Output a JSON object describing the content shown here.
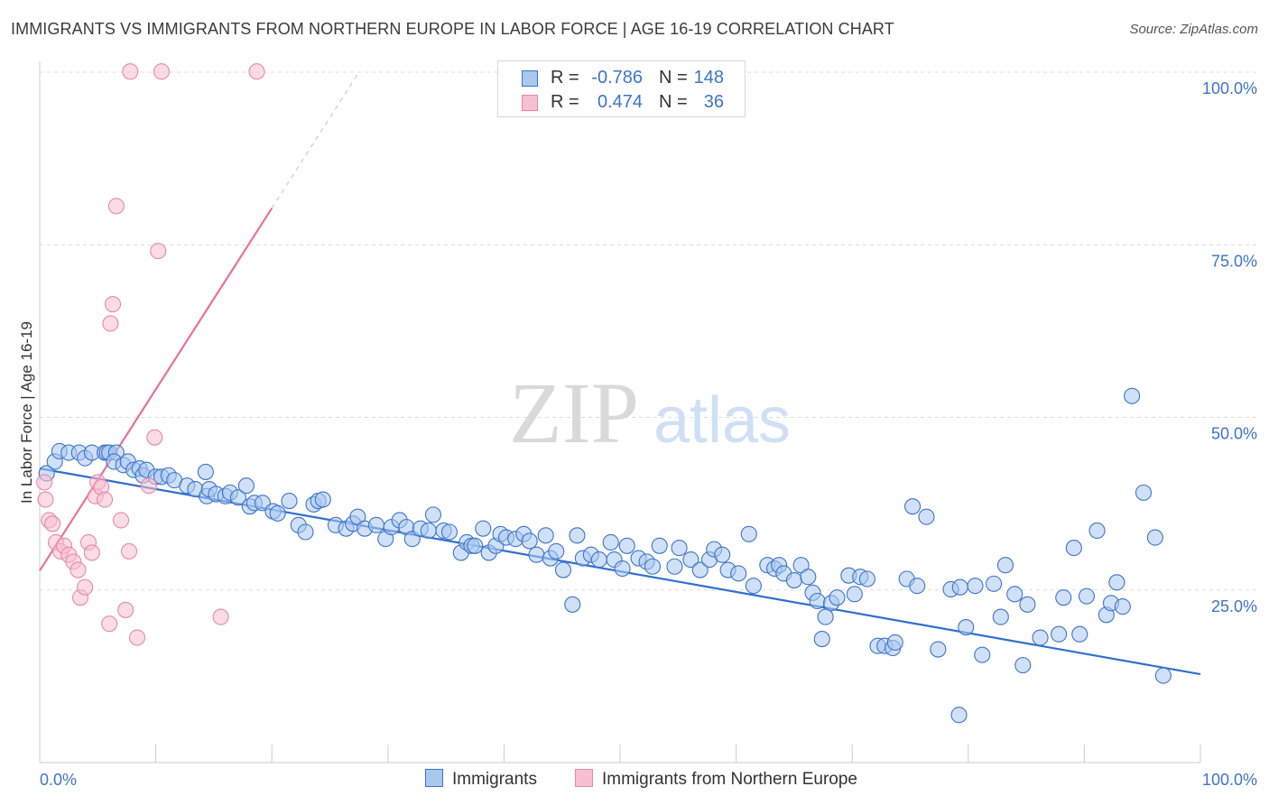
{
  "title": "IMMIGRANTS VS IMMIGRANTS FROM NORTHERN EUROPE IN LABOR FORCE | AGE 16-19 CORRELATION CHART",
  "source": "Source: ZipAtlas.com",
  "watermark": {
    "zip": "ZIP",
    "atlas": "atlas"
  },
  "legend": {
    "rows": [
      {
        "r_label": "R =",
        "r_value": "-0.786",
        "n_label": "N =",
        "n_value": "148"
      },
      {
        "r_label": "R =",
        "r_value": "0.474",
        "n_label": "N =",
        "n_value": "36"
      }
    ]
  },
  "bottom_legend": {
    "blue": "Immigrants",
    "pink": "Immigrants from Northern Europe"
  },
  "colors": {
    "blue_fill": "#a9c8f0",
    "blue_stroke": "#3d74c9",
    "blue_line": "#2f6fd1",
    "pink_fill": "#f7c0d0",
    "pink_stroke": "#e888a8",
    "pink_line": "#e8709a",
    "axis_text": "#3d74c9",
    "grid": "#dcdcdc"
  },
  "chart_data": {
    "type": "scatter",
    "xlabel": "",
    "ylabel": "In Labor Force | Age 16-19",
    "x_range": [
      0,
      100
    ],
    "y_range": [
      0,
      100
    ],
    "x_tick_labels": [
      "0.0%",
      "100.0%"
    ],
    "y_tick_labels": [
      {
        "value": 100,
        "label": "100.0%"
      },
      {
        "value": 75,
        "label": "75.0%"
      },
      {
        "value": 50,
        "label": "50.0%"
      },
      {
        "value": 25,
        "label": "25.0%"
      }
    ],
    "grid": "horizontal dashed",
    "legend_position": "top-center",
    "series": [
      {
        "name": "Immigrants",
        "trend": {
          "x": [
            0,
            100
          ],
          "y": [
            42.6,
            12.8
          ],
          "dashed_ext": null
        },
        "points": [
          [
            0.6,
            41.9
          ],
          [
            1.3,
            43.6
          ],
          [
            1.7,
            45.1
          ],
          [
            2.5,
            44.9
          ],
          [
            3.4,
            44.9
          ],
          [
            3.9,
            44.1
          ],
          [
            4.5,
            44.9
          ],
          [
            5.6,
            44.9
          ],
          [
            5.8,
            44.9
          ],
          [
            6,
            44.9
          ],
          [
            6.6,
            44.9
          ],
          [
            6.4,
            43.6
          ],
          [
            7.2,
            43.1
          ],
          [
            7.6,
            43.6
          ],
          [
            8.1,
            42.4
          ],
          [
            8.6,
            42.6
          ],
          [
            8.9,
            41.6
          ],
          [
            9.2,
            42.4
          ],
          [
            10,
            41.4
          ],
          [
            10.5,
            41.4
          ],
          [
            11.1,
            41.6
          ],
          [
            11.6,
            40.9
          ],
          [
            12.7,
            40.1
          ],
          [
            13.4,
            39.6
          ],
          [
            14.4,
            38.6
          ],
          [
            14.3,
            42.1
          ],
          [
            14.6,
            39.6
          ],
          [
            15.2,
            38.9
          ],
          [
            16,
            38.6
          ],
          [
            16.4,
            39.1
          ],
          [
            17.1,
            38.4
          ],
          [
            17.8,
            40.1
          ],
          [
            18.1,
            37.1
          ],
          [
            18.5,
            37.6
          ],
          [
            19.2,
            37.6
          ],
          [
            20.1,
            36.4
          ],
          [
            20.5,
            36.1
          ],
          [
            21.5,
            37.9
          ],
          [
            22.3,
            34.4
          ],
          [
            22.9,
            33.4
          ],
          [
            23.6,
            37.4
          ],
          [
            24,
            37.9
          ],
          [
            24.4,
            38.1
          ],
          [
            25.5,
            34.4
          ],
          [
            26.4,
            33.9
          ],
          [
            27,
            34.6
          ],
          [
            27.4,
            35.6
          ],
          [
            28,
            33.9
          ],
          [
            29,
            34.4
          ],
          [
            29.8,
            32.4
          ],
          [
            30.3,
            34.1
          ],
          [
            31,
            35.1
          ],
          [
            31.6,
            34.1
          ],
          [
            32.1,
            32.4
          ],
          [
            32.8,
            33.9
          ],
          [
            33.9,
            35.9
          ],
          [
            33.5,
            33.6
          ],
          [
            34.8,
            33.6
          ],
          [
            35.3,
            33.4
          ],
          [
            36.3,
            30.4
          ],
          [
            36.8,
            31.9
          ],
          [
            37.2,
            31.4
          ],
          [
            37.5,
            31.4
          ],
          [
            38.2,
            33.9
          ],
          [
            38.7,
            30.4
          ],
          [
            39.3,
            31.4
          ],
          [
            39.7,
            33.1
          ],
          [
            40.2,
            32.6
          ],
          [
            41,
            32.4
          ],
          [
            41.7,
            33.1
          ],
          [
            42.2,
            32.1
          ],
          [
            42.8,
            30.1
          ],
          [
            43.6,
            32.9
          ],
          [
            44,
            29.6
          ],
          [
            44.5,
            30.6
          ],
          [
            45.1,
            27.9
          ],
          [
            45.9,
            22.9
          ],
          [
            46.3,
            32.9
          ],
          [
            46.8,
            29.6
          ],
          [
            47.5,
            30.1
          ],
          [
            48.2,
            29.4
          ],
          [
            49.2,
            31.9
          ],
          [
            49.5,
            29.4
          ],
          [
            50.2,
            28.1
          ],
          [
            50.6,
            31.4
          ],
          [
            51.6,
            29.6
          ],
          [
            52.3,
            29.1
          ],
          [
            52.8,
            28.4
          ],
          [
            53.4,
            31.4
          ],
          [
            54.7,
            28.4
          ],
          [
            55.1,
            31.1
          ],
          [
            56.1,
            29.4
          ],
          [
            56.9,
            27.9
          ],
          [
            57.7,
            29.4
          ],
          [
            58.1,
            30.9
          ],
          [
            58.8,
            30.1
          ],
          [
            59.3,
            27.9
          ],
          [
            60.2,
            27.4
          ],
          [
            61.1,
            33.1
          ],
          [
            61.5,
            25.6
          ],
          [
            62.7,
            28.6
          ],
          [
            63.3,
            28.1
          ],
          [
            63.7,
            28.6
          ],
          [
            64.1,
            27.4
          ],
          [
            65,
            26.4
          ],
          [
            65.6,
            28.6
          ],
          [
            66.2,
            26.9
          ],
          [
            66.6,
            24.6
          ],
          [
            67,
            23.4
          ],
          [
            67.4,
            17.9
          ],
          [
            67.7,
            21.1
          ],
          [
            68.2,
            23.1
          ],
          [
            68.7,
            23.9
          ],
          [
            69.7,
            27.1
          ],
          [
            70.2,
            24.4
          ],
          [
            70.7,
            26.9
          ],
          [
            71.3,
            26.6
          ],
          [
            72.2,
            16.9
          ],
          [
            72.8,
            16.9
          ],
          [
            73.5,
            16.6
          ],
          [
            73.7,
            17.4
          ],
          [
            74.7,
            26.6
          ],
          [
            75.2,
            37.1
          ],
          [
            75.6,
            25.6
          ],
          [
            76.4,
            35.6
          ],
          [
            77.4,
            16.4
          ],
          [
            78.5,
            25.1
          ],
          [
            79.3,
            25.4
          ],
          [
            79.8,
            19.6
          ],
          [
            80.6,
            25.6
          ],
          [
            81.2,
            15.6
          ],
          [
            82.2,
            25.9
          ],
          [
            82.8,
            21.1
          ],
          [
            83.2,
            28.6
          ],
          [
            84,
            24.4
          ],
          [
            84.7,
            14.1
          ],
          [
            85.1,
            22.9
          ],
          [
            86.2,
            18.1
          ],
          [
            87.8,
            18.6
          ],
          [
            88.2,
            23.9
          ],
          [
            89.1,
            31.1
          ],
          [
            89.6,
            18.6
          ],
          [
            90.2,
            24.1
          ],
          [
            91.1,
            33.6
          ],
          [
            91.9,
            21.4
          ],
          [
            92.3,
            23.1
          ],
          [
            92.8,
            26.1
          ],
          [
            93.3,
            22.6
          ],
          [
            94.1,
            53.1
          ],
          [
            95.1,
            39.1
          ],
          [
            96.1,
            32.6
          ],
          [
            96.8,
            12.6
          ],
          [
            79.2,
            6.9
          ]
        ]
      },
      {
        "name": "Immigrants from Northern Europe",
        "trend": {
          "x": [
            0,
            20
          ],
          "y": [
            27.8,
            80.3
          ],
          "dashed_ext": [
            20,
            27.5,
            100
          ]
        },
        "points": [
          [
            0.4,
            40.6
          ],
          [
            0.5,
            38.1
          ],
          [
            0.8,
            35.1
          ],
          [
            1.1,
            34.6
          ],
          [
            1.4,
            31.9
          ],
          [
            1.8,
            30.6
          ],
          [
            2.1,
            31.4
          ],
          [
            2.5,
            30.1
          ],
          [
            2.9,
            29.1
          ],
          [
            3.3,
            27.9
          ],
          [
            3.5,
            23.9
          ],
          [
            3.9,
            25.4
          ],
          [
            4.2,
            31.9
          ],
          [
            4.5,
            30.4
          ],
          [
            4.8,
            38.6
          ],
          [
            5,
            40.6
          ],
          [
            5.3,
            39.9
          ],
          [
            5.6,
            38.1
          ],
          [
            6,
            20.1
          ],
          [
            6.1,
            63.6
          ],
          [
            6.3,
            66.4
          ],
          [
            6.6,
            80.6
          ],
          [
            7,
            35.1
          ],
          [
            7.4,
            22.1
          ],
          [
            7.7,
            30.6
          ],
          [
            7.8,
            100.1
          ],
          [
            8.4,
            18.1
          ],
          [
            9.4,
            40.1
          ],
          [
            9.9,
            47.1
          ],
          [
            10.2,
            74.1
          ],
          [
            10.5,
            100.1
          ],
          [
            15.6,
            21.1
          ],
          [
            18.7,
            100.1
          ]
        ]
      }
    ]
  }
}
